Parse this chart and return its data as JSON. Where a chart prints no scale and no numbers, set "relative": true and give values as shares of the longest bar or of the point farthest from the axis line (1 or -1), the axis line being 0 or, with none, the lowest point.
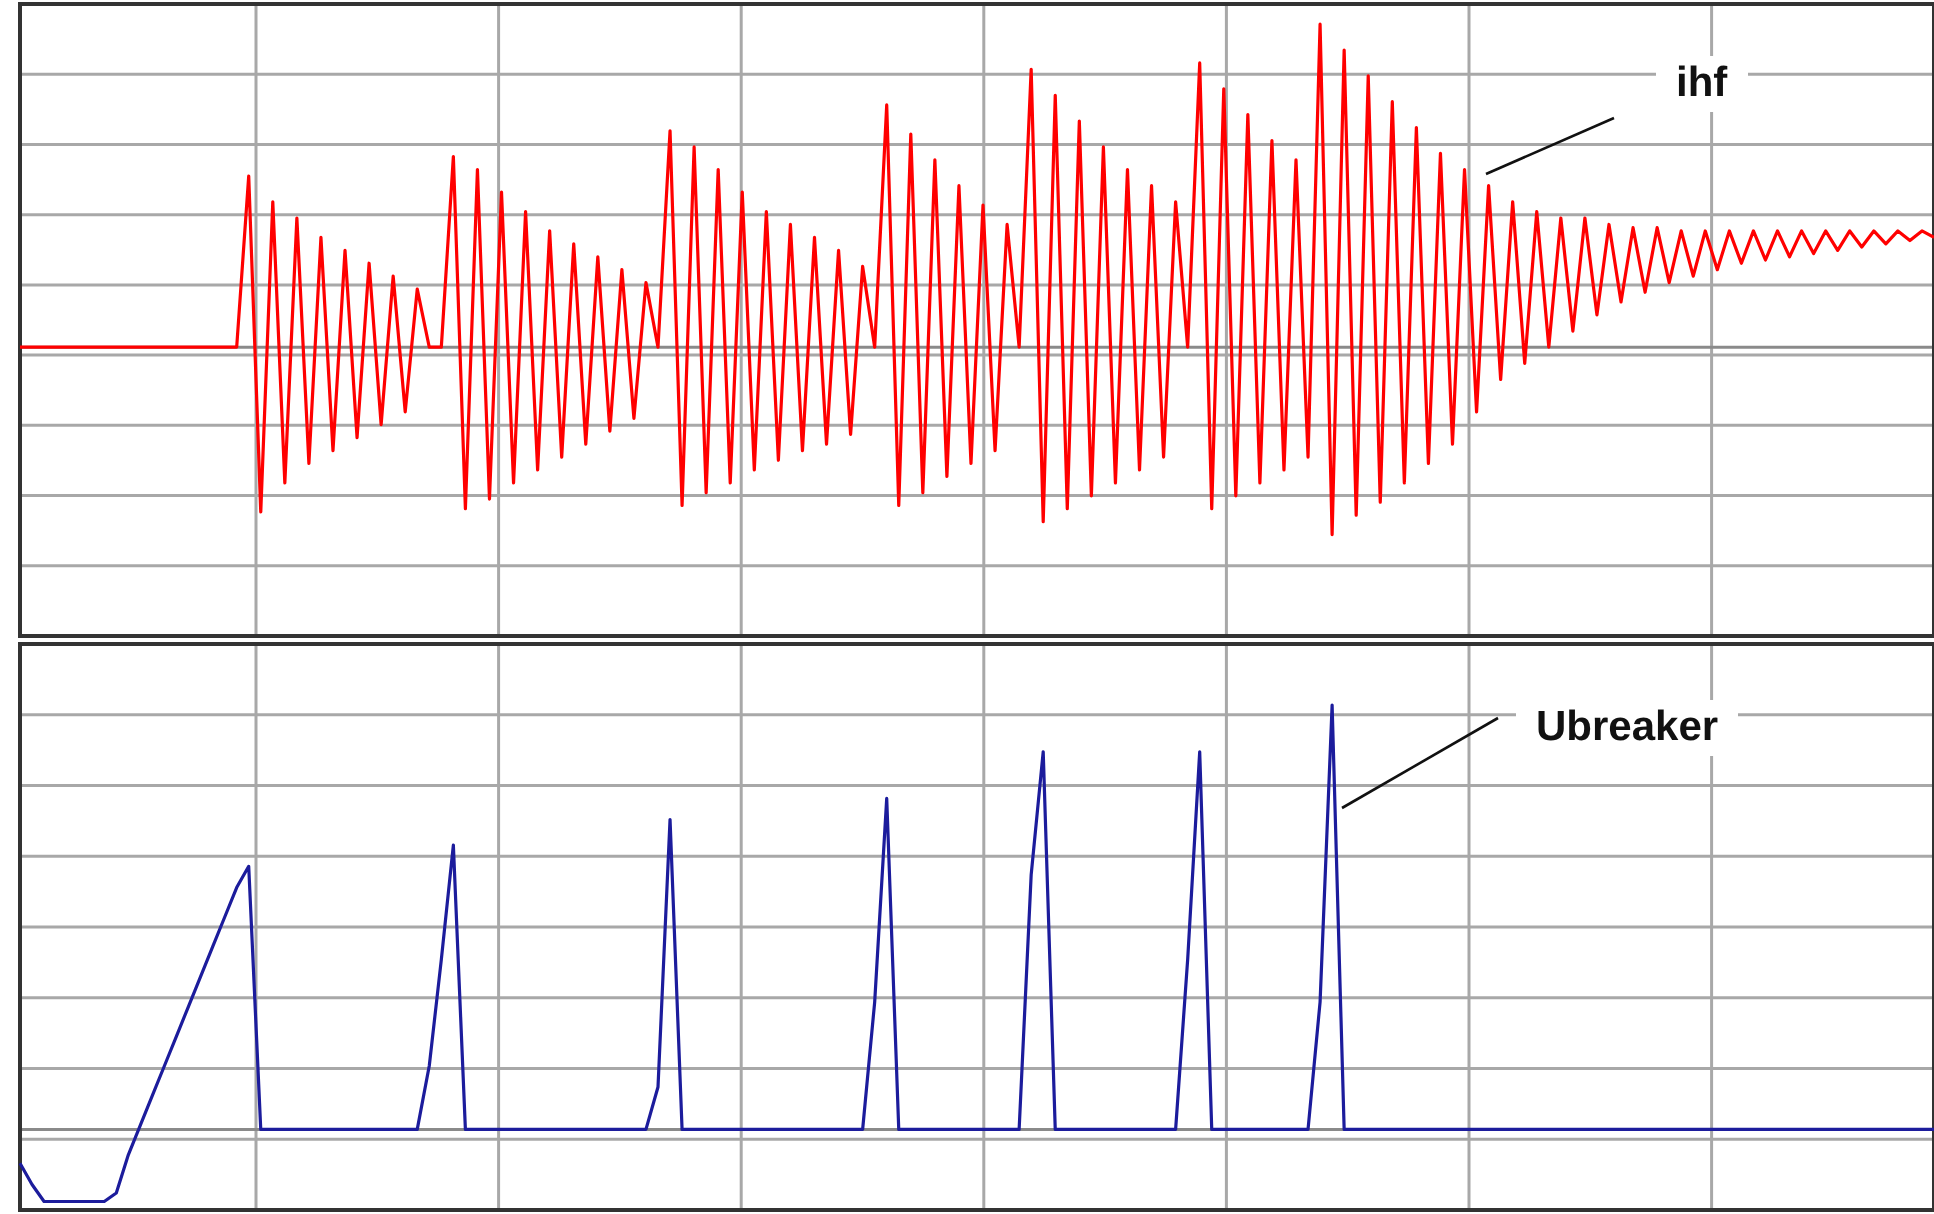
{
  "chart_data": [
    {
      "type": "line",
      "relative": true,
      "grid": true,
      "legend": false,
      "tick_labels": false,
      "marker": "none",
      "line_style": "solid",
      "annotations": [
        "ihf"
      ],
      "categories": [
        null,
        null,
        null,
        null,
        null,
        null,
        null,
        null,
        null,
        null,
        null,
        null,
        null,
        null,
        null,
        null,
        null,
        null,
        null,
        null,
        null,
        null,
        null,
        null,
        null,
        null,
        null,
        null,
        null,
        null,
        null,
        null,
        null,
        null,
        null,
        null,
        null,
        null,
        null,
        null,
        null,
        null,
        null,
        null,
        null,
        null,
        null,
        null,
        null,
        null,
        null,
        null,
        null,
        null,
        null,
        null,
        null,
        null,
        null,
        null,
        null,
        null,
        null,
        null,
        null,
        null,
        null,
        null,
        null,
        null,
        null,
        null,
        null,
        null,
        null,
        null,
        null,
        null,
        null,
        null,
        null,
        null,
        null,
        null,
        null,
        null,
        null,
        null,
        null,
        null,
        null,
        null,
        null,
        null,
        null,
        null,
        null,
        null,
        null,
        null,
        null,
        null,
        null,
        null,
        null,
        null,
        null,
        null,
        null,
        null,
        null,
        null,
        null,
        null,
        null,
        null,
        null,
        null,
        null,
        null,
        null,
        null,
        null,
        null,
        null,
        null,
        null,
        null,
        null,
        null,
        null,
        null,
        null,
        null,
        null,
        null,
        null,
        null,
        null,
        null,
        null,
        null,
        null,
        null,
        null,
        null,
        null,
        null,
        null,
        null,
        null,
        null,
        null,
        null,
        null,
        null,
        null,
        null,
        null,
        null
      ],
      "series": [
        {
          "color": "#ff0000",
          "values": [
            0,
            0,
            0,
            0,
            0,
            0,
            0,
            0,
            0,
            0,
            0,
            0,
            0,
            0,
            0,
            0,
            0,
            0,
            0,
            0.53,
            -0.51,
            0.45,
            -0.42,
            0.4,
            -0.36,
            0.34,
            -0.32,
            0.3,
            -0.28,
            0.26,
            -0.24,
            0.22,
            -0.2,
            0.18,
            0,
            0,
            0.59,
            -0.5,
            0.55,
            -0.47,
            0.48,
            -0.42,
            0.42,
            -0.38,
            0.36,
            -0.34,
            0.32,
            -0.3,
            0.28,
            -0.26,
            0.24,
            -0.22,
            0.2,
            0,
            0.67,
            -0.49,
            0.62,
            -0.45,
            0.55,
            -0.42,
            0.48,
            -0.38,
            0.42,
            -0.35,
            0.38,
            -0.32,
            0.34,
            -0.3,
            0.3,
            -0.27,
            0.25,
            0,
            0.75,
            -0.49,
            0.66,
            -0.45,
            0.58,
            -0.4,
            0.5,
            -0.36,
            0.44,
            -0.32,
            0.38,
            0,
            0.86,
            -0.54,
            0.78,
            -0.5,
            0.7,
            -0.46,
            0.62,
            -0.42,
            0.55,
            -0.38,
            0.5,
            -0.34,
            0.45,
            0,
            0.88,
            -0.5,
            0.8,
            -0.46,
            0.72,
            -0.42,
            0.64,
            -0.38,
            0.58,
            -0.34,
            1.0,
            -0.58,
            0.92,
            -0.52,
            0.84,
            -0.48,
            0.76,
            -0.42,
            0.68,
            -0.36,
            0.6,
            -0.3,
            0.55,
            -0.2,
            0.5,
            -0.1,
            0.45,
            -0.05,
            0.42,
            0.0,
            0.4,
            0.05,
            0.4,
            0.1,
            0.38,
            0.14,
            0.37,
            0.17,
            0.37,
            0.2,
            0.36,
            0.22,
            0.36,
            0.24,
            0.36,
            0.26,
            0.36,
            0.27,
            0.36,
            0.28,
            0.36,
            0.29,
            0.36,
            0.3,
            0.36,
            0.31,
            0.36,
            0.32,
            0.36,
            0.33,
            0.36,
            0.34
          ]
        }
      ]
    },
    {
      "type": "line",
      "relative": true,
      "grid": true,
      "legend": false,
      "tick_labels": false,
      "marker": "none",
      "line_style": "solid",
      "annotations": [
        "Ubreaker"
      ],
      "categories": [
        null,
        null,
        null,
        null,
        null,
        null,
        null,
        null,
        null,
        null,
        null,
        null,
        null,
        null,
        null,
        null,
        null,
        null,
        null,
        null,
        null,
        null,
        null,
        null,
        null,
        null,
        null,
        null,
        null,
        null,
        null,
        null,
        null,
        null,
        null,
        null,
        null,
        null,
        null,
        null,
        null,
        null,
        null,
        null,
        null,
        null,
        null,
        null,
        null,
        null,
        null,
        null,
        null,
        null,
        null,
        null,
        null,
        null,
        null,
        null,
        null,
        null,
        null,
        null,
        null,
        null,
        null,
        null,
        null,
        null,
        null,
        null,
        null,
        null,
        null,
        null,
        null,
        null,
        null,
        null,
        null,
        null,
        null,
        null,
        null,
        null,
        null,
        null,
        null,
        null,
        null,
        null,
        null,
        null,
        null,
        null,
        null,
        null,
        null,
        null,
        null,
        null,
        null,
        null,
        null,
        null,
        null,
        null,
        null,
        null,
        null,
        null,
        null,
        null,
        null,
        null,
        null,
        null,
        null,
        null,
        null,
        null,
        null,
        null,
        null,
        null,
        null,
        null,
        null,
        null,
        null,
        null,
        null,
        null,
        null,
        null,
        null,
        null,
        null,
        null,
        null,
        null,
        null,
        null,
        null,
        null,
        null,
        null,
        null,
        null,
        null,
        null,
        null,
        null,
        null,
        null,
        null,
        null,
        null,
        null
      ],
      "series": [
        {
          "color": "#1c1c9c",
          "values": [
            -0.08,
            -0.13,
            -0.17,
            -0.17,
            -0.17,
            -0.17,
            -0.17,
            -0.17,
            -0.15,
            -0.06,
            0.01,
            0.08,
            0.15,
            0.22,
            0.29,
            0.36,
            0.43,
            0.5,
            0.57,
            0.62,
            0,
            0,
            0,
            0,
            0,
            0,
            0,
            0,
            0,
            0,
            0,
            0,
            0,
            0,
            0.15,
            0.4,
            0.67,
            0,
            0,
            0,
            0,
            0,
            0,
            0,
            0,
            0,
            0,
            0,
            0,
            0,
            0,
            0,
            0,
            0.1,
            0.73,
            0,
            0,
            0,
            0,
            0,
            0,
            0,
            0,
            0,
            0,
            0,
            0,
            0,
            0,
            0,
            0,
            0.3,
            0.78,
            0,
            0,
            0,
            0,
            0,
            0,
            0,
            0,
            0,
            0,
            0,
            0.6,
            0.89,
            0,
            0,
            0,
            0,
            0,
            0,
            0,
            0,
            0,
            0,
            0,
            0.4,
            0.89,
            0,
            0,
            0,
            0,
            0,
            0,
            0,
            0,
            0,
            0.3,
            1.0,
            0,
            0,
            0,
            0,
            0,
            0,
            0,
            0,
            0,
            0,
            0,
            0,
            0,
            0,
            0,
            0,
            0,
            0,
            0,
            0,
            0,
            0,
            0,
            0,
            0,
            0,
            0,
            0,
            0,
            0,
            0,
            0,
            0,
            0,
            0,
            0,
            0,
            0,
            0,
            0,
            0,
            0,
            0,
            0,
            0,
            0,
            0,
            0,
            0,
            0
          ]
        }
      ]
    }
  ]
}
